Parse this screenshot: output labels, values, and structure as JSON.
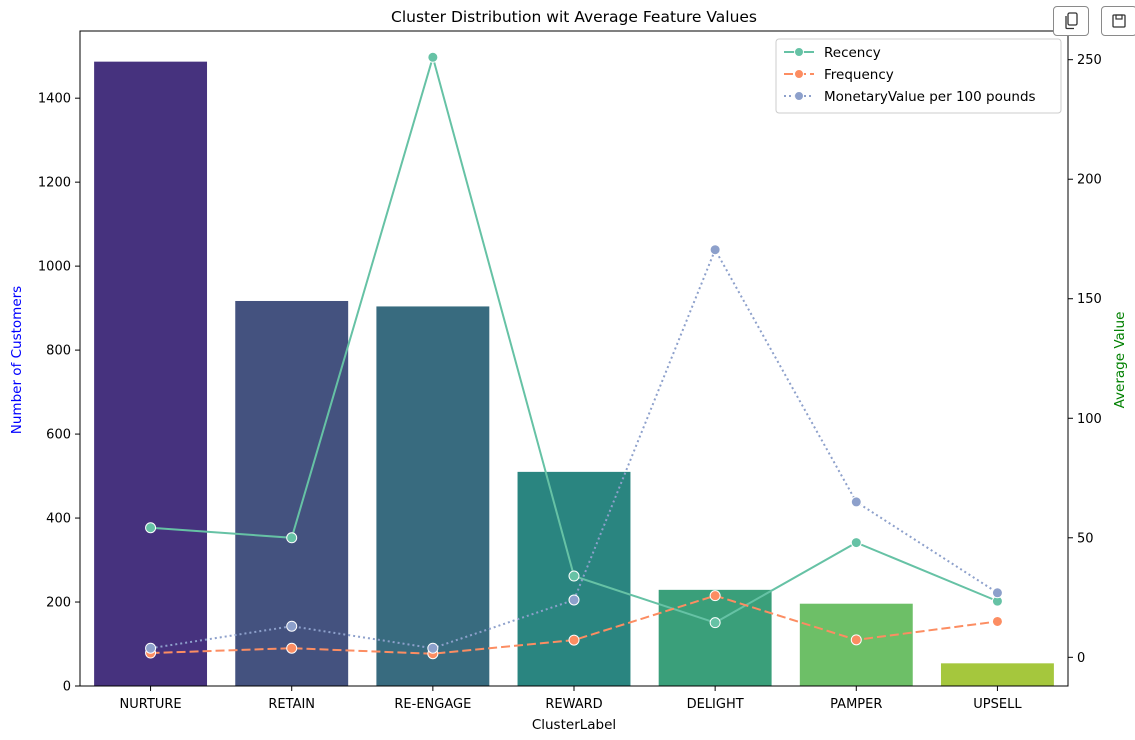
{
  "toolbar": {
    "copy_icon": "copy-icon",
    "save_icon": "save-icon"
  },
  "chart_data": {
    "type": "bar",
    "title": "Cluster Distribution wit Average Feature Values",
    "xlabel": "ClusterLabel",
    "ylabel": "Number of Customers",
    "y2label": "Average Value",
    "ylabel_color": "#0000ff",
    "y2label_color": "#008000",
    "categories": [
      "NURTURE",
      "RETAIN",
      "RE-ENGAGE",
      "REWARD",
      "DELIGHT",
      "PAMPER",
      "UPSELL"
    ],
    "values": [
      1487,
      917,
      904,
      510,
      229,
      196,
      54
    ],
    "bar_colors": [
      "#46327e",
      "#44527f",
      "#386b7f",
      "#2a8580",
      "#3a9f7a",
      "#6dbf67",
      "#a5c73d"
    ],
    "ylim": [
      0,
      1560
    ],
    "yticks": [
      0,
      200,
      400,
      600,
      800,
      1000,
      1200,
      1400
    ],
    "y2lim": [
      -12,
      262
    ],
    "y2ticks": [
      0,
      50,
      100,
      150,
      200,
      250
    ],
    "line_series": [
      {
        "name": "Recency",
        "values": [
          54.2,
          50.0,
          251.0,
          34.0,
          14.5,
          48.0,
          23.5
        ],
        "color": "#66c2a5",
        "style": "solid"
      },
      {
        "name": "Frequency",
        "values": [
          1.8,
          3.8,
          1.5,
          7.2,
          25.8,
          7.3,
          15.0
        ],
        "color": "#fc8d62",
        "style": "dashed"
      },
      {
        "name": "MonetaryValue per 100 pounds",
        "values": [
          3.8,
          13.0,
          3.8,
          24.0,
          170.5,
          65.0,
          27.0
        ],
        "color": "#8da0cb",
        "style": "dotted"
      }
    ],
    "legend_position": "top-right",
    "grid": false
  }
}
